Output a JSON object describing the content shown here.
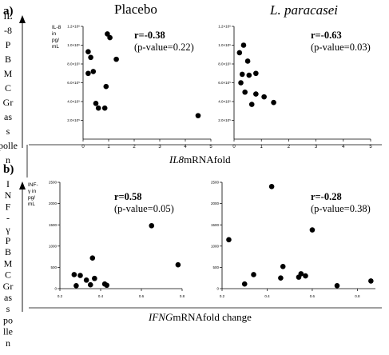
{
  "figure": {
    "panel_a_label": "a)",
    "panel_b_label": "b)",
    "col_titles": [
      "Placebo",
      "L. paracasei"
    ],
    "side_label_a": [
      "IL",
      "-8",
      "P",
      "B",
      "M",
      "C",
      "Gr",
      "as",
      "s",
      "polle",
      "n"
    ],
    "side_label_b": [
      "I",
      "N",
      "F",
      "-",
      "γ",
      "P",
      "B",
      "M",
      "C",
      "Gr",
      "as",
      "s",
      "po",
      "lle",
      "n"
    ],
    "xlabel_a": {
      "italic": "IL8",
      "rest": "mRNAfold"
    },
    "xlabel_b": {
      "italic": "IFNG",
      "rest": "mRNAfold change"
    }
  },
  "chart_data": [
    {
      "type": "scatter",
      "panel": "a",
      "group": "Placebo",
      "ylabel": [
        "IL-8",
        "in",
        "pg/",
        "mL"
      ],
      "r_text": "r=-0.38",
      "p_text": "(p-value=0.22)",
      "xlim": [
        0,
        5
      ],
      "ylim": [
        0,
        1200000
      ],
      "xticks": [
        0,
        1,
        2,
        3,
        4,
        5
      ],
      "xtick_labels": [
        "0",
        "1",
        "2",
        "3",
        "4",
        "5"
      ],
      "yticks": [
        200000,
        400000,
        600000,
        800000,
        1000000,
        1200000
      ],
      "ytick_labels": [
        "2.0×10⁵",
        "4.0×10⁵",
        "6.0×10⁵",
        "8.0×10⁵",
        "1.0×10⁶",
        "1.2×10⁶"
      ],
      "points": [
        {
          "x": 0.2,
          "y": 930000
        },
        {
          "x": 0.3,
          "y": 870000
        },
        {
          "x": 0.2,
          "y": 700000
        },
        {
          "x": 0.4,
          "y": 720000
        },
        {
          "x": 0.5,
          "y": 380000
        },
        {
          "x": 0.6,
          "y": 330000
        },
        {
          "x": 0.85,
          "y": 330000
        },
        {
          "x": 0.9,
          "y": 560000
        },
        {
          "x": 0.95,
          "y": 1120000
        },
        {
          "x": 1.05,
          "y": 1080000
        },
        {
          "x": 1.3,
          "y": 850000
        },
        {
          "x": 4.5,
          "y": 250000
        }
      ]
    },
    {
      "type": "scatter",
      "panel": "a",
      "group": "L. paracasei",
      "ylabel": [],
      "r_text": "r=-0.63",
      "p_text": "(p-value=0.03)",
      "xlim": [
        0,
        5
      ],
      "ylim": [
        0,
        1200000
      ],
      "xticks": [
        0,
        1,
        2,
        3,
        4,
        5
      ],
      "xtick_labels": [
        "0",
        "1",
        "2",
        "3",
        "4",
        "5"
      ],
      "yticks": [
        200000,
        400000,
        600000,
        800000,
        1000000,
        1200000
      ],
      "ytick_labels": [
        "2.0×10⁵",
        "4.0×10⁵",
        "6.0×10⁵",
        "8.0×10⁵",
        "1.0×10⁶",
        "1.2×10⁶"
      ],
      "points": [
        {
          "x": 0.2,
          "y": 920000
        },
        {
          "x": 0.35,
          "y": 1000000
        },
        {
          "x": 0.5,
          "y": 830000
        },
        {
          "x": 0.3,
          "y": 690000
        },
        {
          "x": 0.55,
          "y": 680000
        },
        {
          "x": 0.8,
          "y": 700000
        },
        {
          "x": 0.25,
          "y": 600000
        },
        {
          "x": 0.4,
          "y": 500000
        },
        {
          "x": 0.8,
          "y": 480000
        },
        {
          "x": 0.65,
          "y": 370000
        },
        {
          "x": 1.1,
          "y": 450000
        },
        {
          "x": 1.45,
          "y": 390000
        }
      ]
    },
    {
      "type": "scatter",
      "panel": "b",
      "group": "Placebo",
      "ylabel": [
        "INF-",
        "γ in",
        "pg/",
        "mL"
      ],
      "r_text": "r=0.58",
      "p_text": "(p-value=0.05)",
      "xlim": [
        0.2,
        0.8
      ],
      "ylim": [
        0,
        2500
      ],
      "xticks": [
        0.2,
        0.4,
        0.6,
        0.8
      ],
      "xtick_labels": [
        "0.2",
        "0.4",
        "0.6",
        "0.8"
      ],
      "yticks": [
        0,
        500,
        1000,
        1500,
        2000,
        2500
      ],
      "ytick_labels": [
        "0",
        "500",
        "1000",
        "1500",
        "2000",
        "2500"
      ],
      "points": [
        {
          "x": 0.27,
          "y": 330
        },
        {
          "x": 0.3,
          "y": 310
        },
        {
          "x": 0.28,
          "y": 70
        },
        {
          "x": 0.33,
          "y": 200
        },
        {
          "x": 0.35,
          "y": 90
        },
        {
          "x": 0.36,
          "y": 720
        },
        {
          "x": 0.37,
          "y": 240
        },
        {
          "x": 0.42,
          "y": 110
        },
        {
          "x": 0.43,
          "y": 80
        },
        {
          "x": 0.65,
          "y": 1480
        },
        {
          "x": 0.78,
          "y": 560
        }
      ]
    },
    {
      "type": "scatter",
      "panel": "b",
      "group": "L. paracasei",
      "ylabel": [],
      "r_text": "r=-0.28",
      "p_text": "(p-value=0.38)",
      "xlim": [
        0.2,
        0.88
      ],
      "ylim": [
        0,
        2500
      ],
      "xticks": [
        0.2,
        0.4,
        0.6,
        0.8
      ],
      "xtick_labels": [
        "0.2",
        "0.4",
        "0.6",
        "0.8"
      ],
      "yticks": [
        0,
        500,
        1000,
        1500,
        2000,
        2500
      ],
      "ytick_labels": [
        "0",
        "500",
        "1000",
        "1500",
        "2000",
        "2500"
      ],
      "points": [
        {
          "x": 0.23,
          "y": 1150
        },
        {
          "x": 0.3,
          "y": 110
        },
        {
          "x": 0.34,
          "y": 330
        },
        {
          "x": 0.42,
          "y": 2400
        },
        {
          "x": 0.47,
          "y": 520
        },
        {
          "x": 0.46,
          "y": 250
        },
        {
          "x": 0.54,
          "y": 270
        },
        {
          "x": 0.55,
          "y": 350
        },
        {
          "x": 0.57,
          "y": 300
        },
        {
          "x": 0.6,
          "y": 1380
        },
        {
          "x": 0.71,
          "y": 70
        },
        {
          "x": 0.86,
          "y": 180
        }
      ]
    }
  ]
}
